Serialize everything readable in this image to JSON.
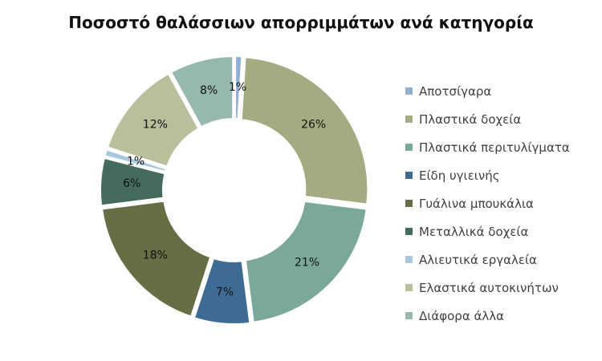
{
  "chart_data": {
    "type": "pie",
    "donut": true,
    "title": "Ποσοστό θαλάσσιων απορριμμάτων ανά κατηγορία",
    "legend_position": "right",
    "slices": [
      {
        "label": "Αποτσίγαρα",
        "value": 1,
        "value_label": "1%",
        "color": "#8fb0d4"
      },
      {
        "label": "Πλαστικά δοχεία",
        "value": 26,
        "value_label": "26%",
        "color": "#a3ab80"
      },
      {
        "label": "Πλαστικά περιτυλίγματα",
        "value": 21,
        "value_label": "21%",
        "color": "#7aa89b"
      },
      {
        "label": "Είδη υγιεινής",
        "value": 7,
        "value_label": "7%",
        "color": "#3d6b94"
      },
      {
        "label": "Γυάλινα μπουκάλια",
        "value": 18,
        "value_label": "18%",
        "color": "#666e44"
      },
      {
        "label": "Μεταλλικά δοχεία",
        "value": 6,
        "value_label": "6%",
        "color": "#456b5d"
      },
      {
        "label": "Αλιευτικά εργαλεία",
        "value": 1,
        "value_label": "1%",
        "color": "#a8c8e0"
      },
      {
        "label": "Ελαστικά αυτοκινήτων",
        "value": 12,
        "value_label": "12%",
        "color": "#b8bf9a"
      },
      {
        "label": "Διάφορα άλλα",
        "value": 8,
        "value_label": "8%",
        "color": "#97b8ae"
      }
    ]
  }
}
